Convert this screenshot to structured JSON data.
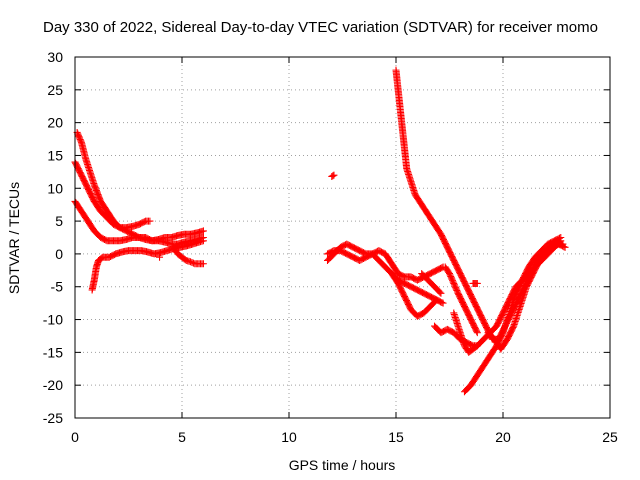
{
  "chart_data": {
    "type": "scatter",
    "title": "Day 330 of 2022, Sidereal Day-to-day VTEC variation (SDTVAR) for receiver momo",
    "xlabel": "GPS time / hours",
    "ylabel": "SDTVAR / TECUs",
    "xlim": [
      0,
      25
    ],
    "ylim": [
      -25,
      30
    ],
    "xticks": [
      0,
      5,
      10,
      15,
      20,
      25
    ],
    "yticks": [
      -25,
      -20,
      -15,
      -10,
      -5,
      0,
      5,
      10,
      15,
      20,
      25,
      30
    ],
    "grid": true,
    "marker": "+",
    "marker_color": "#ff0000",
    "series": [
      {
        "name": "s1",
        "x": [
          0.1,
          0.3,
          0.5,
          0.7,
          0.9,
          1.2,
          1.5,
          1.8,
          2.1,
          2.4,
          2.7,
          3.0,
          3.3,
          3.6,
          3.9,
          4.2,
          4.5,
          4.8,
          5.1,
          5.4,
          5.7,
          6.0
        ],
        "y": [
          18.5,
          17,
          14.5,
          12.5,
          10.5,
          8,
          6.5,
          5,
          4,
          3.5,
          3,
          2.5,
          2.5,
          2,
          2,
          1.8,
          1.5,
          1.5,
          1.8,
          2,
          2.2,
          2.5
        ]
      },
      {
        "name": "s2",
        "x": [
          0,
          0.3,
          0.6,
          0.9,
          1.2,
          1.5,
          1.8,
          2.1,
          2.4,
          2.7,
          3.0,
          3.3,
          3.5
        ],
        "y": [
          14,
          12,
          10,
          8,
          6.5,
          5.5,
          4.5,
          4,
          4,
          4.2,
          4.5,
          5,
          5
        ]
      },
      {
        "name": "s3",
        "x": [
          0,
          0.3,
          0.6,
          0.9,
          1.2,
          1.5,
          1.8,
          2.1,
          2.4,
          2.7,
          3.0,
          3.3,
          3.6,
          3.9,
          4.2,
          4.5,
          4.8,
          5.1,
          5.4,
          5.7,
          6.0
        ],
        "y": [
          8,
          6.5,
          5,
          3.5,
          2.5,
          2,
          2,
          2,
          2.2,
          2.5,
          2.5,
          2.2,
          2,
          2.2,
          2.5,
          2.5,
          2.8,
          3,
          3,
          3.2,
          3.5
        ]
      },
      {
        "name": "s4",
        "x": [
          0.8,
          0.9,
          1.0,
          1.1,
          1.3,
          1.6,
          1.9,
          2.2,
          2.5,
          2.8,
          3.1,
          3.4,
          3.7,
          4.0,
          4.3,
          4.6,
          4.9,
          5.2,
          5.5,
          5.8,
          6.0
        ],
        "y": [
          -5.5,
          -4,
          -2,
          -1,
          -0.5,
          -0.5,
          0,
          0.3,
          0.5,
          0.5,
          0.5,
          0.3,
          0,
          0.2,
          0.5,
          0.8,
          1,
          1.2,
          1.5,
          1.8,
          2
        ]
      },
      {
        "name": "s5",
        "x": [
          4.6,
          4.8,
          5.0,
          5.2,
          5.4,
          5.6,
          5.8,
          6.0
        ],
        "y": [
          1,
          0,
          -0.5,
          -1,
          -1.2,
          -1.5,
          -1.5,
          -1.5
        ]
      },
      {
        "name": "s6",
        "x": [
          3.95
        ],
        "y": [
          -0.5
        ]
      },
      {
        "name": "s7",
        "x": [
          12.0,
          12.1
        ],
        "y": [
          11.8,
          12
        ]
      },
      {
        "name": "s8",
        "x": [
          11.8,
          12.1,
          12.4,
          12.7,
          13.0,
          13.3,
          13.6,
          13.9,
          14.2,
          14.5,
          14.8,
          15.1,
          15.4,
          15.7,
          16.0,
          16.3,
          16.6,
          16.9,
          17.2
        ],
        "y": [
          -1,
          0,
          1,
          1.5,
          1,
          0.5,
          0,
          0,
          0.5,
          0,
          -1.5,
          -3,
          -3.5,
          -3.5,
          -4,
          -3.5,
          -3,
          -2.5,
          -2
        ]
      },
      {
        "name": "s9",
        "x": [
          11.8,
          12.1,
          12.4,
          12.7,
          13.0,
          13.3,
          13.6,
          13.9,
          14.2,
          14.5,
          14.8,
          15.1,
          15.4,
          15.7,
          16.0,
          16.3,
          16.6,
          16.9,
          17.2
        ],
        "y": [
          0,
          0.5,
          0.5,
          0,
          -0.5,
          -1,
          -0.5,
          0,
          -1,
          -2,
          -3,
          -4,
          -4.5,
          -5,
          -5.5,
          -6,
          -6.5,
          -7,
          -7.5
        ]
      },
      {
        "name": "s10",
        "x": [
          14.8,
          15.1,
          15.4,
          15.7,
          16.0,
          16.3,
          16.6,
          16.9
        ],
        "y": [
          -3,
          -4.5,
          -6.5,
          -8.5,
          -9.5,
          -9,
          -8,
          -7
        ]
      },
      {
        "name": "s11",
        "x": [
          15.0,
          15.1,
          15.2,
          15.3,
          15.4,
          15.5,
          15.7,
          15.9,
          16.2,
          16.5,
          16.8,
          17.1,
          17.4,
          17.7,
          18.0,
          18.3,
          18.6,
          18.9,
          19.2,
          19.5,
          19.8,
          20.1,
          20.4,
          20.7,
          21.0,
          21.3,
          21.6,
          21.9,
          22.2,
          22.5,
          22.8
        ],
        "y": [
          28,
          25,
          22,
          19,
          16,
          13,
          11,
          9,
          7.5,
          6,
          4.5,
          3,
          1,
          -1,
          -3,
          -5,
          -7,
          -9,
          -11,
          -13,
          -13,
          -11,
          -9,
          -7,
          -5,
          -3,
          -1,
          0,
          1,
          1.5,
          1.5
        ]
      },
      {
        "name": "s12",
        "x": [
          17.3,
          17.5,
          17.7,
          17.9,
          18.2,
          18.5,
          18.8
        ],
        "y": [
          -2,
          -3,
          -4.5,
          -6,
          -8,
          -10,
          -12
        ]
      },
      {
        "name": "s13",
        "x": [
          17.7,
          18.0,
          18.2,
          18.4,
          18.6,
          18.8,
          19.1,
          19.4,
          19.7,
          20.0,
          20.3,
          20.6,
          20.9,
          21.2,
          21.5,
          21.8,
          22.1,
          22.4,
          22.7
        ],
        "y": [
          -9,
          -12,
          -14,
          -15,
          -14.5,
          -14,
          -13,
          -12,
          -11,
          -9,
          -7,
          -5,
          -4,
          -3,
          -2,
          -1,
          0,
          1,
          2
        ]
      },
      {
        "name": "s14",
        "x": [
          18.2,
          18.5,
          18.8,
          19.1,
          19.4,
          19.7,
          20.0,
          20.3,
          20.6,
          20.9,
          21.2,
          21.5,
          21.8,
          22.1,
          22.4,
          22.7
        ],
        "y": [
          -21,
          -20,
          -18.5,
          -17,
          -15.5,
          -14,
          -12,
          -9,
          -6,
          -4,
          -2,
          -0.5,
          0.5,
          1.5,
          2,
          2.5
        ]
      },
      {
        "name": "s15",
        "x": [
          16.8,
          17.1,
          17.4,
          17.7,
          18.0,
          18.3,
          18.6,
          18.8
        ],
        "y": [
          -11,
          -12,
          -11.5,
          -12,
          -13,
          -13.5,
          -14,
          -14
        ]
      },
      {
        "name": "s16",
        "x": [
          16.2,
          16.5,
          16.8,
          17.1
        ],
        "y": [
          -3,
          -4,
          -5,
          -6
        ]
      },
      {
        "name": "s17",
        "x": [
          19.3,
          19.6,
          19.9,
          20.2,
          20.5,
          20.8,
          21.1,
          21.4,
          21.7,
          22.0,
          22.3,
          22.6,
          22.9
        ],
        "y": [
          -12,
          -13,
          -14.5,
          -13,
          -11,
          -8,
          -5,
          -3,
          -1,
          0,
          1,
          1.5,
          1
        ]
      },
      {
        "name": "s18",
        "x": [
          18.6,
          18.7,
          18.8
        ],
        "y": [
          -4.5,
          -4.5,
          -4.5
        ]
      }
    ]
  }
}
